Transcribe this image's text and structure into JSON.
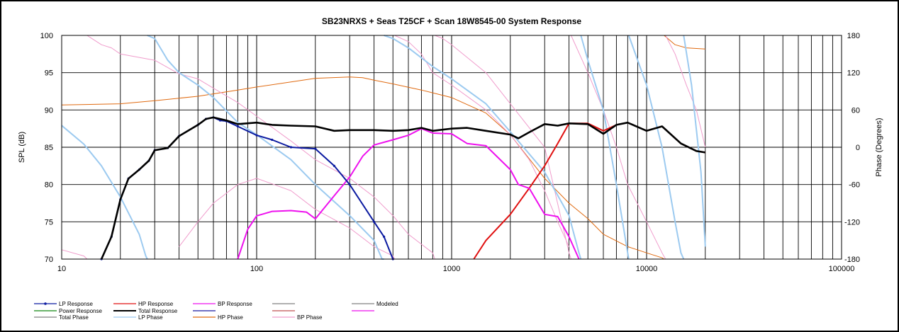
{
  "chart_data": {
    "type": "line",
    "title": "SB23NRXS + Seas T25CF + Scan 18W8545-00   System Response",
    "xlabel": "",
    "ylabel": "SPL (dB)",
    "y2label": "Phase (Degrees)",
    "xscale": "log",
    "xlim": [
      10,
      100000
    ],
    "ylim": [
      70,
      100
    ],
    "y2lim": [
      -180,
      180
    ],
    "x_ticks": [
      "10",
      "100",
      "1000",
      "10000",
      "100000"
    ],
    "y_ticks": [
      "70",
      "75",
      "80",
      "85",
      "90",
      "95",
      "100"
    ],
    "y2_ticks": [
      "-180",
      "-120",
      "-60",
      "0",
      "60",
      "120",
      "180"
    ],
    "grid": true,
    "legend_position": "bottom",
    "series": [
      {
        "name": "LP Response",
        "axis": "left",
        "color": "#0b1aa0",
        "width": 2,
        "marker": true,
        "points": [
          [
            16,
            70
          ],
          [
            18,
            73
          ],
          [
            20,
            78
          ],
          [
            22,
            80.8
          ],
          [
            25,
            82
          ],
          [
            28,
            83.2
          ],
          [
            30,
            84.6
          ],
          [
            35,
            84.9
          ],
          [
            40,
            86.5
          ],
          [
            50,
            88
          ],
          [
            55,
            88.8
          ],
          [
            60,
            89
          ],
          [
            65,
            88.6
          ],
          [
            70,
            88.5
          ],
          [
            80,
            87.8
          ],
          [
            100,
            86.6
          ],
          [
            120,
            86
          ],
          [
            150,
            85
          ],
          [
            200,
            84.8
          ],
          [
            250,
            82.5
          ],
          [
            300,
            80
          ],
          [
            400,
            75
          ],
          [
            450,
            73
          ],
          [
            500,
            70
          ]
        ]
      },
      {
        "name": "HP Response",
        "axis": "left",
        "color": "#e01010",
        "width": 2,
        "points": [
          [
            1300,
            70
          ],
          [
            1500,
            72.5
          ],
          [
            2000,
            76
          ],
          [
            2500,
            79.5
          ],
          [
            3000,
            82.5
          ],
          [
            3500,
            85.5
          ],
          [
            4000,
            88.2
          ],
          [
            5000,
            88.2
          ],
          [
            6000,
            87.2
          ],
          [
            7000,
            88
          ],
          [
            8000,
            88.3
          ],
          [
            10000,
            87.2
          ],
          [
            12000,
            87.8
          ],
          [
            15000,
            85.5
          ],
          [
            18000,
            84.5
          ],
          [
            20000,
            84.3
          ]
        ]
      },
      {
        "name": "BP Response",
        "axis": "left",
        "color": "#ee10ee",
        "width": 2,
        "points": [
          [
            80,
            70
          ],
          [
            90,
            74
          ],
          [
            100,
            75.8
          ],
          [
            120,
            76.4
          ],
          [
            150,
            76.5
          ],
          [
            180,
            76.3
          ],
          [
            200,
            75.4
          ],
          [
            250,
            78.5
          ],
          [
            300,
            81
          ],
          [
            350,
            83.8
          ],
          [
            400,
            85.3
          ],
          [
            500,
            86
          ],
          [
            600,
            86.6
          ],
          [
            700,
            87.5
          ],
          [
            800,
            86.9
          ],
          [
            1000,
            86.8
          ],
          [
            1200,
            85.5
          ],
          [
            1500,
            85.2
          ],
          [
            2000,
            82
          ],
          [
            2200,
            80
          ],
          [
            2500,
            79.5
          ],
          [
            3000,
            76
          ],
          [
            3500,
            75.7
          ],
          [
            4000,
            73
          ],
          [
            4500,
            70
          ]
        ]
      },
      {
        "name": "Total Response",
        "axis": "left",
        "color": "#000000",
        "width": 2.6,
        "points": [
          [
            16,
            70
          ],
          [
            18,
            73
          ],
          [
            20,
            78
          ],
          [
            22,
            80.8
          ],
          [
            25,
            82
          ],
          [
            28,
            83.2
          ],
          [
            30,
            84.6
          ],
          [
            35,
            84.9
          ],
          [
            40,
            86.5
          ],
          [
            50,
            88
          ],
          [
            55,
            88.8
          ],
          [
            60,
            89
          ],
          [
            70,
            88.6
          ],
          [
            80,
            88.1
          ],
          [
            100,
            88.3
          ],
          [
            120,
            88
          ],
          [
            150,
            87.9
          ],
          [
            200,
            87.8
          ],
          [
            250,
            87.2
          ],
          [
            300,
            87.3
          ],
          [
            400,
            87.3
          ],
          [
            500,
            87.2
          ],
          [
            600,
            87.3
          ],
          [
            700,
            87.6
          ],
          [
            800,
            87.2
          ],
          [
            1000,
            87.5
          ],
          [
            1200,
            87.6
          ],
          [
            1500,
            87.2
          ],
          [
            2000,
            86.7
          ],
          [
            2200,
            86.2
          ],
          [
            2500,
            87
          ],
          [
            3000,
            88.1
          ],
          [
            3500,
            87.9
          ],
          [
            4000,
            88.2
          ],
          [
            5000,
            88.1
          ],
          [
            6000,
            86.8
          ],
          [
            7000,
            88
          ],
          [
            8000,
            88.3
          ],
          [
            10000,
            87.2
          ],
          [
            12000,
            87.8
          ],
          [
            15000,
            85.5
          ],
          [
            18000,
            84.5
          ],
          [
            20000,
            84.3
          ]
        ]
      },
      {
        "name": "Total Phase",
        "axis": "right",
        "color": "#f09ccc",
        "width": 1,
        "points": [
          [
            10,
            -165
          ],
          [
            13,
            -175
          ],
          [
            13.5,
            180
          ],
          [
            16,
            165
          ],
          [
            18,
            160
          ],
          [
            20,
            150
          ],
          [
            30,
            140
          ],
          [
            40,
            118
          ],
          [
            50,
            110
          ],
          [
            60,
            95
          ],
          [
            80,
            72
          ],
          [
            100,
            50
          ],
          [
            150,
            10
          ],
          [
            200,
            -20
          ],
          [
            300,
            -50
          ],
          [
            400,
            -80
          ],
          [
            500,
            -110
          ],
          [
            600,
            -140
          ],
          [
            800,
            -170
          ],
          [
            820,
            180
          ],
          [
            900,
            175
          ],
          [
            1000,
            165
          ],
          [
            1500,
            120
          ],
          [
            2000,
            70
          ],
          [
            3000,
            0
          ],
          [
            4000,
            -170
          ],
          [
            4100,
            180
          ],
          [
            5000,
            120
          ],
          [
            6000,
            60
          ],
          [
            7000,
            0
          ],
          [
            8000,
            -60
          ],
          [
            10000,
            -120
          ],
          [
            12000,
            -170
          ],
          [
            12500,
            180
          ],
          [
            14000,
            150
          ],
          [
            16000,
            100
          ],
          [
            18000,
            60
          ],
          [
            20000,
            0
          ]
        ]
      },
      {
        "name": "LP Phase",
        "axis": "right",
        "color": "#9ccaf0",
        "width": 2,
        "points": [
          [
            10,
            35
          ],
          [
            13,
            5
          ],
          [
            16,
            -30
          ],
          [
            20,
            -80
          ],
          [
            25,
            -140
          ],
          [
            27,
            -175
          ],
          [
            27.5,
            180
          ],
          [
            30,
            175
          ],
          [
            35,
            140
          ],
          [
            40,
            120
          ],
          [
            50,
            100
          ],
          [
            60,
            80
          ],
          [
            80,
            40
          ],
          [
            100,
            20
          ],
          [
            150,
            -20
          ],
          [
            200,
            -60
          ],
          [
            300,
            -110
          ],
          [
            400,
            -150
          ],
          [
            440,
            -180
          ],
          [
            450,
            180
          ],
          [
            500,
            175
          ],
          [
            600,
            160
          ],
          [
            800,
            130
          ],
          [
            1000,
            110
          ],
          [
            1500,
            70
          ],
          [
            2000,
            25
          ],
          [
            3000,
            -40
          ],
          [
            4000,
            -110
          ],
          [
            4500,
            -170
          ],
          [
            4600,
            180
          ],
          [
            5000,
            140
          ],
          [
            6000,
            60
          ],
          [
            7000,
            -60
          ],
          [
            8000,
            -170
          ],
          [
            8100,
            180
          ],
          [
            10000,
            100
          ],
          [
            12000,
            0
          ],
          [
            14000,
            -120
          ],
          [
            15000,
            -170
          ],
          [
            15500,
            180
          ],
          [
            17000,
            100
          ],
          [
            19000,
            -40
          ],
          [
            20000,
            -160
          ]
        ]
      },
      {
        "name": "HP Phase",
        "axis": "right",
        "color": "#e06a10",
        "width": 1,
        "points": [
          [
            10,
            68
          ],
          [
            20,
            70
          ],
          [
            30,
            75
          ],
          [
            50,
            82
          ],
          [
            80,
            92
          ],
          [
            100,
            97
          ],
          [
            150,
            105
          ],
          [
            200,
            111
          ],
          [
            300,
            113
          ],
          [
            350,
            112
          ],
          [
            400,
            108
          ],
          [
            500,
            102
          ],
          [
            700,
            92
          ],
          [
            1000,
            80
          ],
          [
            1500,
            55
          ],
          [
            2000,
            20
          ],
          [
            3000,
            -50
          ],
          [
            4000,
            -90
          ],
          [
            5000,
            -115
          ],
          [
            6000,
            -140
          ],
          [
            8000,
            -160
          ],
          [
            10000,
            -170
          ],
          [
            12000,
            -178
          ],
          [
            12300,
            180
          ],
          [
            14000,
            165
          ],
          [
            16000,
            160
          ],
          [
            20000,
            158
          ]
        ]
      },
      {
        "name": "BP Phase",
        "axis": "right",
        "color": "#f09ccc",
        "width": 1,
        "points": [
          [
            40,
            -160
          ],
          [
            50,
            -120
          ],
          [
            60,
            -90
          ],
          [
            80,
            -60
          ],
          [
            100,
            -50
          ],
          [
            150,
            -70
          ],
          [
            200,
            -100
          ],
          [
            300,
            -130
          ],
          [
            400,
            -160
          ],
          [
            500,
            -175
          ],
          [
            510,
            180
          ],
          [
            600,
            170
          ],
          [
            700,
            150
          ],
          [
            800,
            120
          ],
          [
            1000,
            100
          ],
          [
            1500,
            60
          ],
          [
            2000,
            20
          ],
          [
            2500,
            -20
          ],
          [
            3000,
            -70
          ],
          [
            3500,
            -120
          ],
          [
            4000,
            -160
          ]
        ]
      }
    ],
    "legend": [
      [
        "LP Response",
        "HP Response",
        "BP Response",
        "",
        "Modeled"
      ],
      [
        "Power Response",
        "Total Response",
        "",
        "",
        ""
      ],
      [
        "Total Phase",
        "LP Phase",
        "HP Phase",
        "BP Phase",
        ""
      ]
    ],
    "legend_colors": [
      [
        "#0b1aa0",
        "#e01010",
        "#ee10ee",
        "#808080",
        "#808080"
      ],
      [
        "#118811",
        "#000000",
        "#1a1aa0",
        "#c05050",
        "#ee10ee"
      ],
      [
        "#808080",
        "#9ccaf0",
        "#e06a10",
        "#f09ccc",
        ""
      ]
    ]
  }
}
